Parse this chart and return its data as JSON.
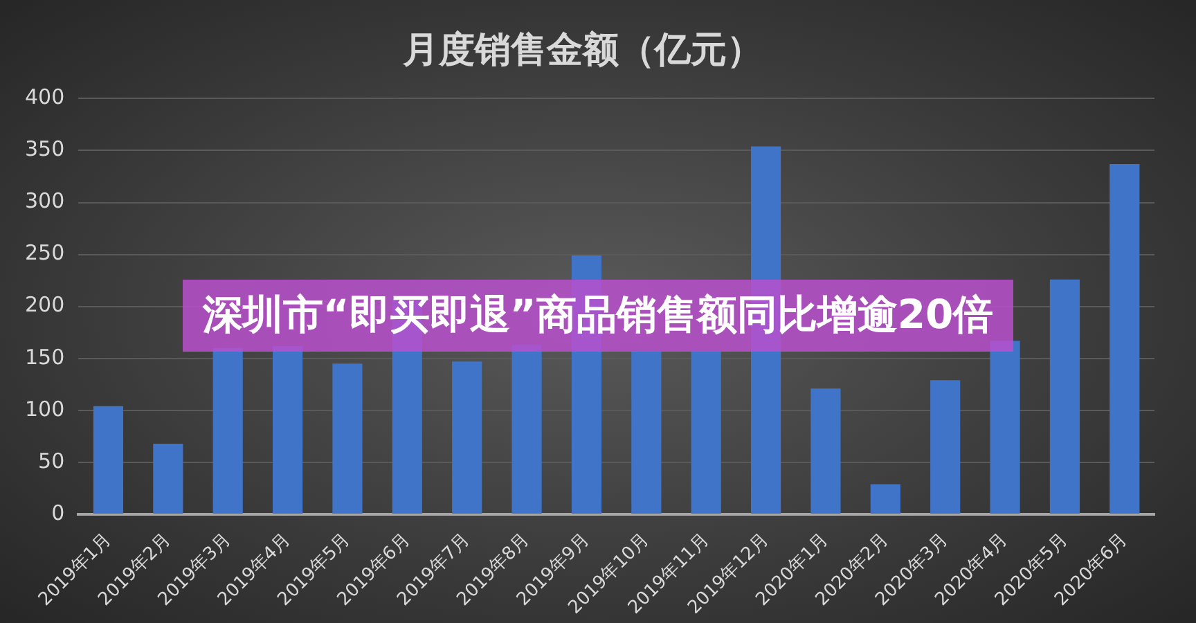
{
  "chart_data": {
    "type": "bar",
    "title": "月度销售金额（亿元）",
    "annotations": [
      "深圳市“即买即退”商品销售额同比增逾20倍"
    ],
    "categories": [
      "2019年1月",
      "2019年2月",
      "2019年3月",
      "2019年4月",
      "2019年5月",
      "2019年6月",
      "2019年7月",
      "2019年8月",
      "2019年9月",
      "2019年10月",
      "2019年11月",
      "2019年12月",
      "2020年1月",
      "2020年2月",
      "2020年3月",
      "2020年4月",
      "2020年5月",
      "2020年6月"
    ],
    "values": [
      104,
      68,
      160,
      162,
      145,
      208,
      147,
      163,
      249,
      157,
      157,
      354,
      121,
      29,
      129,
      167,
      226,
      337
    ],
    "color": "#3f74c9",
    "ylim": [
      0,
      400
    ],
    "yticks": [
      0,
      50,
      100,
      150,
      200,
      250,
      300,
      350,
      400
    ],
    "grid": "y"
  }
}
